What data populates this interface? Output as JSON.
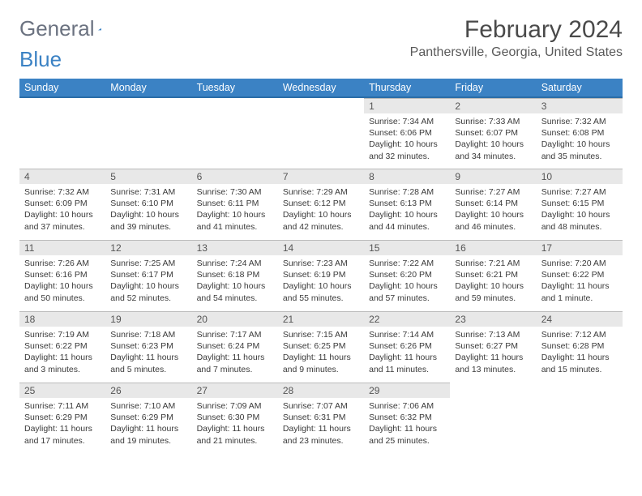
{
  "logo": {
    "text1": "General",
    "text2": "Blue"
  },
  "title": "February 2024",
  "location": "Panthersville, Georgia, United States",
  "colors": {
    "header_bg": "#3b82c4",
    "header_border": "#2a6da8",
    "daynum_bg": "#e8e8e8"
  },
  "weekdays": [
    "Sunday",
    "Monday",
    "Tuesday",
    "Wednesday",
    "Thursday",
    "Friday",
    "Saturday"
  ],
  "grid": [
    [
      null,
      null,
      null,
      null,
      {
        "n": "1",
        "sr": "7:34 AM",
        "ss": "6:06 PM",
        "dl": "10 hours and 32 minutes."
      },
      {
        "n": "2",
        "sr": "7:33 AM",
        "ss": "6:07 PM",
        "dl": "10 hours and 34 minutes."
      },
      {
        "n": "3",
        "sr": "7:32 AM",
        "ss": "6:08 PM",
        "dl": "10 hours and 35 minutes."
      }
    ],
    [
      {
        "n": "4",
        "sr": "7:32 AM",
        "ss": "6:09 PM",
        "dl": "10 hours and 37 minutes."
      },
      {
        "n": "5",
        "sr": "7:31 AM",
        "ss": "6:10 PM",
        "dl": "10 hours and 39 minutes."
      },
      {
        "n": "6",
        "sr": "7:30 AM",
        "ss": "6:11 PM",
        "dl": "10 hours and 41 minutes."
      },
      {
        "n": "7",
        "sr": "7:29 AM",
        "ss": "6:12 PM",
        "dl": "10 hours and 42 minutes."
      },
      {
        "n": "8",
        "sr": "7:28 AM",
        "ss": "6:13 PM",
        "dl": "10 hours and 44 minutes."
      },
      {
        "n": "9",
        "sr": "7:27 AM",
        "ss": "6:14 PM",
        "dl": "10 hours and 46 minutes."
      },
      {
        "n": "10",
        "sr": "7:27 AM",
        "ss": "6:15 PM",
        "dl": "10 hours and 48 minutes."
      }
    ],
    [
      {
        "n": "11",
        "sr": "7:26 AM",
        "ss": "6:16 PM",
        "dl": "10 hours and 50 minutes."
      },
      {
        "n": "12",
        "sr": "7:25 AM",
        "ss": "6:17 PM",
        "dl": "10 hours and 52 minutes."
      },
      {
        "n": "13",
        "sr": "7:24 AM",
        "ss": "6:18 PM",
        "dl": "10 hours and 54 minutes."
      },
      {
        "n": "14",
        "sr": "7:23 AM",
        "ss": "6:19 PM",
        "dl": "10 hours and 55 minutes."
      },
      {
        "n": "15",
        "sr": "7:22 AM",
        "ss": "6:20 PM",
        "dl": "10 hours and 57 minutes."
      },
      {
        "n": "16",
        "sr": "7:21 AM",
        "ss": "6:21 PM",
        "dl": "10 hours and 59 minutes."
      },
      {
        "n": "17",
        "sr": "7:20 AM",
        "ss": "6:22 PM",
        "dl": "11 hours and 1 minute."
      }
    ],
    [
      {
        "n": "18",
        "sr": "7:19 AM",
        "ss": "6:22 PM",
        "dl": "11 hours and 3 minutes."
      },
      {
        "n": "19",
        "sr": "7:18 AM",
        "ss": "6:23 PM",
        "dl": "11 hours and 5 minutes."
      },
      {
        "n": "20",
        "sr": "7:17 AM",
        "ss": "6:24 PM",
        "dl": "11 hours and 7 minutes."
      },
      {
        "n": "21",
        "sr": "7:15 AM",
        "ss": "6:25 PM",
        "dl": "11 hours and 9 minutes."
      },
      {
        "n": "22",
        "sr": "7:14 AM",
        "ss": "6:26 PM",
        "dl": "11 hours and 11 minutes."
      },
      {
        "n": "23",
        "sr": "7:13 AM",
        "ss": "6:27 PM",
        "dl": "11 hours and 13 minutes."
      },
      {
        "n": "24",
        "sr": "7:12 AM",
        "ss": "6:28 PM",
        "dl": "11 hours and 15 minutes."
      }
    ],
    [
      {
        "n": "25",
        "sr": "7:11 AM",
        "ss": "6:29 PM",
        "dl": "11 hours and 17 minutes."
      },
      {
        "n": "26",
        "sr": "7:10 AM",
        "ss": "6:29 PM",
        "dl": "11 hours and 19 minutes."
      },
      {
        "n": "27",
        "sr": "7:09 AM",
        "ss": "6:30 PM",
        "dl": "11 hours and 21 minutes."
      },
      {
        "n": "28",
        "sr": "7:07 AM",
        "ss": "6:31 PM",
        "dl": "11 hours and 23 minutes."
      },
      {
        "n": "29",
        "sr": "7:06 AM",
        "ss": "6:32 PM",
        "dl": "11 hours and 25 minutes."
      },
      null,
      null
    ]
  ],
  "labels": {
    "sunrise": "Sunrise: ",
    "sunset": "Sunset: ",
    "daylight": "Daylight: "
  }
}
